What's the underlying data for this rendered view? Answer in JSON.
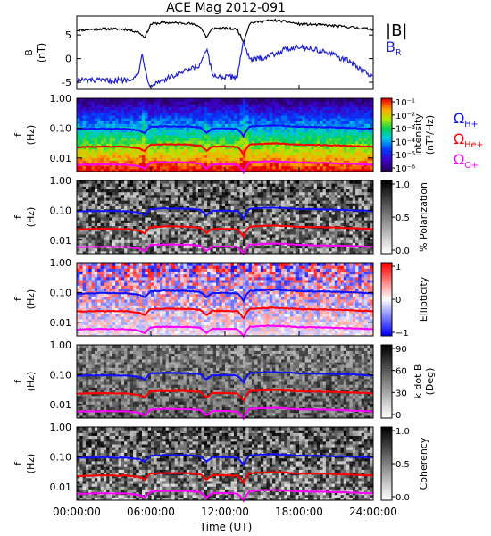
{
  "chart_data": {
    "type": "spectrogram-panels",
    "title": "ACE Mag 2012-091",
    "x_ticks": [
      "00:00:00",
      "06:00:00",
      "12:00:00",
      "18:00:00",
      "24:00:00"
    ],
    "x_label": "Time (UT)",
    "x_range_hours": [
      0,
      24
    ],
    "colors": {
      "B_total": "#000000",
      "B_R": "#1f1fd0",
      "H": "#1010ff",
      "He": "#ff0000",
      "O": "#ff00ff"
    },
    "panels": [
      {
        "kind": "line",
        "ylabel": "B\n(nT)",
        "ylim": [
          -6.5,
          9
        ],
        "yticks": [
          -5,
          0,
          5
        ],
        "legend": [
          "|B|",
          "B_R"
        ],
        "series": [
          {
            "name": "|B|",
            "x": [
              0,
              2,
              4,
              5,
              5.5,
              6,
              7,
              9,
              10,
              10.5,
              11,
              12,
              13,
              13.5,
              14,
              15,
              16,
              17,
              18,
              20,
              22,
              24
            ],
            "y": [
              6,
              6.3,
              6.2,
              5.6,
              4.5,
              7.3,
              7.6,
              7.5,
              6.8,
              4.5,
              6.4,
              6.4,
              6.2,
              3.5,
              7.5,
              7.9,
              8.1,
              7.8,
              7.3,
              7.1,
              6.7,
              6.2
            ]
          },
          {
            "name": "B_R",
            "x": [
              0,
              2,
              4,
              5,
              5.3,
              5.7,
              6,
              6.5,
              8,
              9,
              10,
              10.5,
              11,
              12,
              13,
              13.5,
              14,
              15,
              16,
              17,
              18,
              20,
              22,
              24
            ],
            "y": [
              -4.5,
              -4.7,
              -4.5,
              -3.5,
              1.5,
              -4.5,
              -5.5,
              -5,
              -3.5,
              -2.5,
              -1.5,
              2,
              -3.5,
              -4,
              -3.8,
              4,
              -0.5,
              0.2,
              1,
              2,
              2.6,
              1.5,
              -0.5,
              -4
            ]
          }
        ]
      },
      {
        "kind": "spectrogram",
        "ylabel": "f\n(Hz)",
        "colorbar": "Intensity\n(nT²/Hz)",
        "cbar_ticks": [
          "10⁻¹",
          "10⁻²",
          "10⁻³",
          "10⁻⁴",
          "10⁻⁵",
          "10⁻⁶"
        ],
        "cmap": "rainbow",
        "gyro_legend": true
      },
      {
        "kind": "spectrogram",
        "ylabel": "f\n(Hz)",
        "colorbar": "% Polarization",
        "cbar_ticks": [
          "1.0",
          "0.5",
          "0.0"
        ],
        "cmap": "gray"
      },
      {
        "kind": "spectrogram",
        "ylabel": "f\n(Hz)",
        "colorbar": "Ellipticity",
        "cbar_ticks": [
          "1",
          "0",
          "−1"
        ],
        "cmap": "bwr"
      },
      {
        "kind": "spectrogram",
        "ylabel": "f\n(Hz)",
        "colorbar": "k dot B\n(Deg)",
        "cbar_ticks": [
          "90",
          "60",
          "30",
          "0"
        ],
        "cmap": "gray"
      },
      {
        "kind": "spectrogram",
        "ylabel": "f\n(Hz)",
        "colorbar": "Coherency",
        "cbar_ticks": [
          "1.0",
          "0.5",
          "0.0"
        ],
        "cmap": "gray"
      }
    ],
    "freq_axis": {
      "scale": "log",
      "range": [
        0.0035,
        1.0
      ],
      "ticks": [
        "1.00",
        "0.10",
        "0.01"
      ]
    },
    "gyro_legend": [
      "Ω_H+",
      "Ω_He+",
      "Ω_O+"
    ],
    "gyrofreq_H_Hz": {
      "x": [
        0,
        2,
        4,
        5,
        5.5,
        6,
        7,
        9,
        10,
        10.5,
        11,
        12,
        13,
        13.5,
        14,
        15,
        16,
        17,
        18,
        20,
        22,
        24
      ],
      "y": [
        0.092,
        0.096,
        0.094,
        0.085,
        0.068,
        0.11,
        0.115,
        0.113,
        0.104,
        0.068,
        0.097,
        0.097,
        0.094,
        0.053,
        0.113,
        0.12,
        0.123,
        0.118,
        0.111,
        0.108,
        0.102,
        0.094
      ]
    }
  }
}
